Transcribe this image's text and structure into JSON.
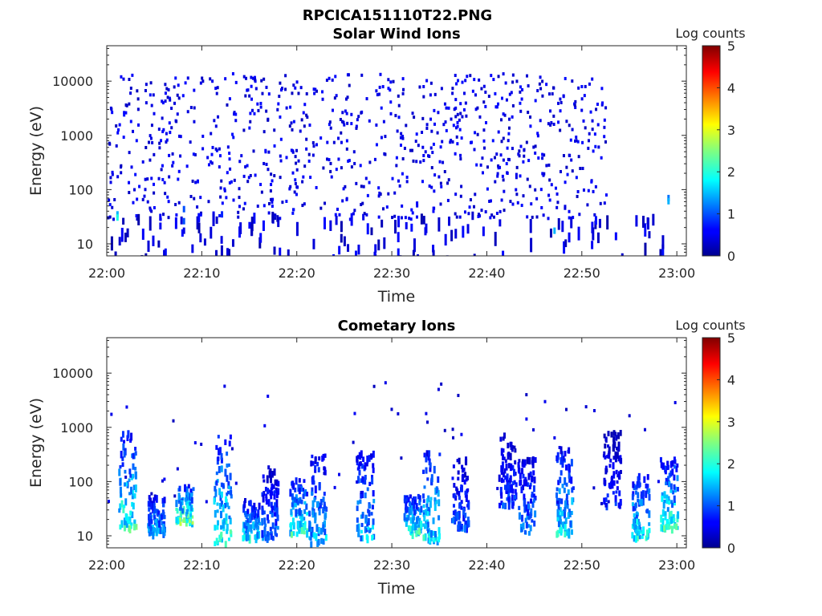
{
  "figure_title": "RPCICA151110T22.PNG",
  "chart_data": [
    {
      "type": "heatmap",
      "title": "Solar Wind Ions",
      "xlabel": "Time",
      "ylabel": "Energy (eV)",
      "x_ticks": [
        "22:00",
        "22:10",
        "22:20",
        "22:30",
        "22:40",
        "22:50",
        "23:00"
      ],
      "x_range": [
        "22:00",
        "23:01"
      ],
      "y_scale": "log",
      "y_ticks": [
        "10",
        "100",
        "1000",
        "10000"
      ],
      "y_range_ev": [
        6,
        45000
      ],
      "colorbar": {
        "label": "Log counts",
        "range": [
          0,
          5
        ],
        "ticks": [
          "0",
          "1",
          "2",
          "3",
          "4",
          "5"
        ],
        "colormap": "jet"
      },
      "description_of_values": "Sparse scattered log counts mostly 0-1 from ~30 eV to ~15000 eV between 22:00 and 22:52; occasional points near 22:57 and 22:59; denser low-energy streaks (10-50 eV) around 22:07-22:09 and 22:12",
      "cells": [
        {
          "t": "22:01",
          "e": 40,
          "v": 1.5
        },
        {
          "t": "22:01",
          "e": 35,
          "v": 2.0
        },
        {
          "t": "22:08",
          "e": 50,
          "v": 1.0
        },
        {
          "t": "22:08",
          "e": 30,
          "v": 1.0
        },
        {
          "t": "22:08",
          "e": 20,
          "v": 0.5
        },
        {
          "t": "22:12",
          "e": 40,
          "v": 0.8
        },
        {
          "t": "22:47",
          "e": 20,
          "v": 1.5
        },
        {
          "t": "22:59",
          "e": 80,
          "v": 1.2
        },
        {
          "t": "22:59",
          "e": 70,
          "v": 1.5
        }
      ]
    },
    {
      "type": "heatmap",
      "title": "Cometary Ions",
      "xlabel": "Time",
      "ylabel": "Energy (eV)",
      "x_ticks": [
        "22:00",
        "22:10",
        "22:20",
        "22:30",
        "22:40",
        "22:50",
        "23:00"
      ],
      "x_range": [
        "22:00",
        "23:01"
      ],
      "y_scale": "log",
      "y_ticks": [
        "10",
        "100",
        "1000",
        "10000"
      ],
      "y_range_ev": [
        6,
        45000
      ],
      "colorbar": {
        "label": "Log counts",
        "range": [
          0,
          5
        ],
        "ticks": [
          "0",
          "1",
          "2",
          "3",
          "4",
          "5"
        ],
        "colormap": "jet"
      },
      "description_of_values": "Bursty vertical streaks of cometary ions at ~10-1000 eV with peak log counts up to ~3 near 22:01-22:03, 22:05-22:09, 22:12, 22:15-22:18, 22:20-22:22, 22:27-22:28, 22:31-22:35, 22:36-22:38, 22:41-22:44, 22:46-22:49, 22:52-22:54, 22:55-22:57, 22:59-23:00",
      "bursts": [
        {
          "t": "22:02",
          "emin": 15,
          "emax": 900,
          "peak": 2.6
        },
        {
          "t": "22:05",
          "emin": 12,
          "emax": 60,
          "peak": 2.0
        },
        {
          "t": "22:08",
          "emin": 18,
          "emax": 90,
          "peak": 3.0
        },
        {
          "t": "22:12",
          "emin": 8,
          "emax": 800,
          "peak": 2.6
        },
        {
          "t": "22:15",
          "emin": 10,
          "emax": 50,
          "peak": 2.2
        },
        {
          "t": "22:17",
          "emin": 10,
          "emax": 200,
          "peak": 1.5
        },
        {
          "t": "22:20",
          "emin": 12,
          "emax": 120,
          "peak": 2.5
        },
        {
          "t": "22:22",
          "emin": 8,
          "emax": 350,
          "peak": 2.0
        },
        {
          "t": "22:27",
          "emin": 10,
          "emax": 400,
          "peak": 2.0
        },
        {
          "t": "22:32",
          "emin": 12,
          "emax": 60,
          "peak": 2.6
        },
        {
          "t": "22:34",
          "emin": 8,
          "emax": 400,
          "peak": 2.4
        },
        {
          "t": "22:37",
          "emin": 15,
          "emax": 300,
          "peak": 1.3
        },
        {
          "t": "22:42",
          "emin": 40,
          "emax": 800,
          "peak": 1.2
        },
        {
          "t": "22:44",
          "emin": 12,
          "emax": 300,
          "peak": 1.6
        },
        {
          "t": "22:48",
          "emin": 12,
          "emax": 500,
          "peak": 2.2
        },
        {
          "t": "22:53",
          "emin": 40,
          "emax": 900,
          "peak": 1.0
        },
        {
          "t": "22:56",
          "emin": 10,
          "emax": 150,
          "peak": 2.4
        },
        {
          "t": "22:59",
          "emin": 15,
          "emax": 300,
          "peak": 2.6
        }
      ]
    }
  ]
}
